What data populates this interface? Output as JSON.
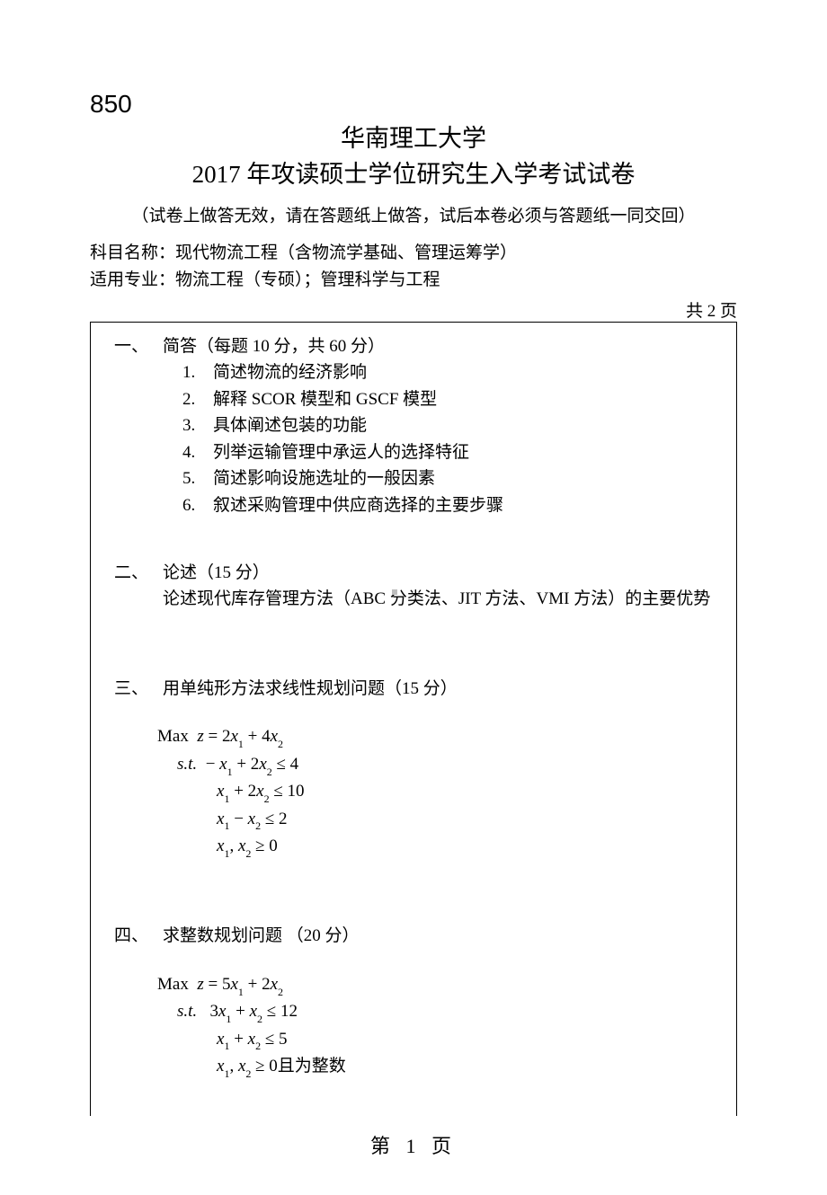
{
  "code": "850",
  "university": "华南理工大学",
  "title": "2017 年攻读硕士学位研究生入学考试试卷",
  "notice": "（试卷上做答无效，请在答题纸上做答，试后本卷必须与答题纸一同交回）",
  "subject_label": "科目名称：",
  "subject_value": "现代物流工程（含物流学基础、管理运筹学）",
  "major_label": "适用专业：",
  "major_value": "物流工程（专硕）；管理科学与工程",
  "page_count": "共 2 页",
  "s1": {
    "num": "一、",
    "head": "简答（每题 10 分，共 60 分）",
    "items": {
      "1": {
        "n": "1.",
        "t": "简述物流的经济影响"
      },
      "2": {
        "n": "2.",
        "t": "解释 SCOR 模型和 GSCF 模型"
      },
      "3": {
        "n": "3.",
        "t": "具体阐述包装的功能"
      },
      "4": {
        "n": "4.",
        "t": "列举运输管理中承运人的选择特征"
      },
      "5": {
        "n": "5.",
        "t": "简述影响设施选址的一般因素"
      },
      "6": {
        "n": "6.",
        "t": "叙述采购管理中供应商选择的主要步骤"
      }
    }
  },
  "s2": {
    "num": "二、",
    "head": "论述（15 分）",
    "body": "论述现代库存管理方法（ABC 分类法、JIT 方法、VMI 方法）的主要优势"
  },
  "s3": {
    "num": "三、",
    "head": " 用单纯形方法求线性规划问题（15 分）"
  },
  "s4": {
    "num": "四、",
    "head": "求整数规划问题 （20 分）"
  },
  "math3": {
    "prefix_max": "Max",
    "prefix_st": "s.t.",
    "obj_lhs": "z",
    "obj_eq": " = ",
    "c1": "2",
    "c2": "4",
    "l1_a": "− ",
    "l1_b": " + 2",
    "l1_cmp": " ≤ 4",
    "l2_b": " + 2",
    "l2_cmp": " ≤ 10",
    "l3_b": " − ",
    "l3_cmp": " ≤ 2",
    "nn": " ≥ 0"
  },
  "math4": {
    "prefix_max": "Max",
    "prefix_st": "s.t.",
    "c1": "5",
    "c2": "2",
    "l1_a": "3",
    "l1_b": " + ",
    "l1_cmp": " ≤ 12",
    "l2_b": " + ",
    "l2_cmp": " ≤ 5",
    "nn": " ≥ 0且为整数"
  },
  "vars": {
    "x": "x",
    "z": "z",
    "s1": "1",
    "s2": "2",
    "comma": ", ",
    "plus": " + "
  },
  "footer": "第  1  页"
}
